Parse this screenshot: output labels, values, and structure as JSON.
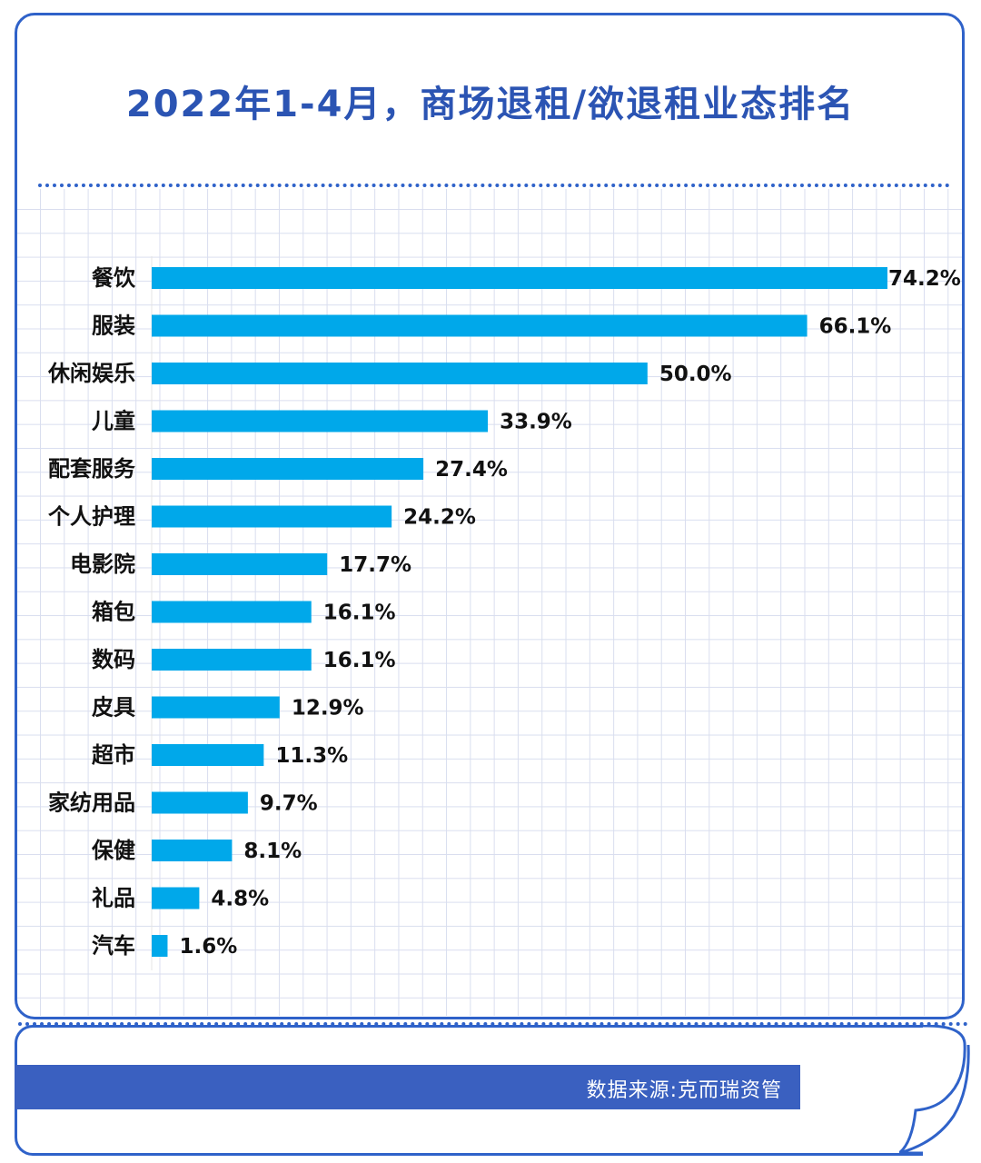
{
  "title": "2022年1-4月，商场退租/欲退租业态排名",
  "source": "数据来源:克而瑞资管",
  "colors": {
    "bar": "#00a8ea",
    "accent": "#2f62c9",
    "title": "#2b54b3"
  },
  "chart_data": {
    "type": "bar",
    "orientation": "horizontal",
    "title": "2022年1-4月，商场退租/欲退租业态排名",
    "categories": [
      "餐饮",
      "服装",
      "休闲娱乐",
      "儿童",
      "配套服务",
      "个人护理",
      "电影院",
      "箱包",
      "数码",
      "皮具",
      "超市",
      "家纺用品",
      "保健",
      "礼品",
      "汽车"
    ],
    "values": [
      74.2,
      66.1,
      50.0,
      33.9,
      27.4,
      24.2,
      17.7,
      16.1,
      16.1,
      12.9,
      11.3,
      9.7,
      8.1,
      4.8,
      1.6
    ],
    "value_labels": [
      "74.2%",
      "66.1%",
      "50.0%",
      "33.9%",
      "27.4%",
      "24.2%",
      "17.7%",
      "16.1%",
      "16.1%",
      "12.9%",
      "11.3%",
      "9.7%",
      "8.1%",
      "4.8%",
      "1.6%"
    ],
    "unit": "%",
    "xlim": [
      0,
      74.2
    ],
    "grid": false,
    "legend": "none"
  }
}
